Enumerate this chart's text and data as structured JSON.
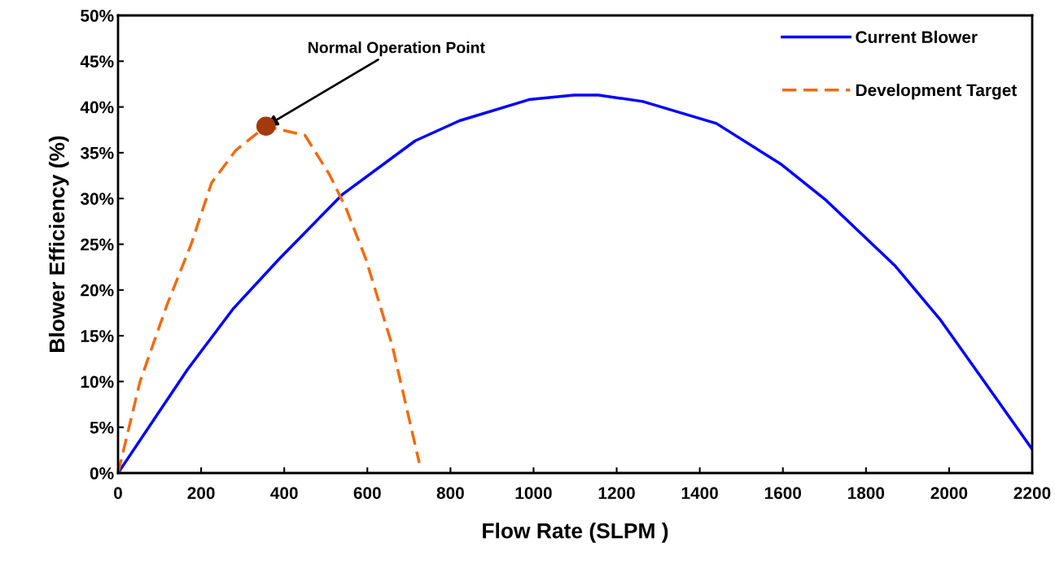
{
  "chart_data": {
    "type": "line",
    "xlabel": "Flow Rate (SLPM )",
    "ylabel": "Blower Efficiency (%)",
    "series": [
      {
        "name": "Current Blower",
        "color": "#0000ff",
        "line_style": "solid",
        "x": [
          0,
          167,
          278,
          388,
          539,
          715,
          822,
          989,
          1097,
          1156,
          1263,
          1440,
          1597,
          1704,
          1871,
          1978,
          2086,
          2200
        ],
        "values": [
          0,
          11.3,
          18,
          23.4,
          30.4,
          36.3,
          38.5,
          40.8,
          41.3,
          41.3,
          40.6,
          38.2,
          33.7,
          29.8,
          22.6,
          16.8,
          9.9,
          2.6
        ]
      },
      {
        "name": "Development Target",
        "color": "#f26a10",
        "line_style": "dashed",
        "x": [
          0,
          53,
          118,
          176,
          225,
          284,
          356,
          450,
          509,
          548,
          597,
          660,
          725
        ],
        "values": [
          0,
          10,
          18.4,
          25,
          31.7,
          35.3,
          37.9,
          36.9,
          32.6,
          29,
          23.3,
          13.9,
          1.1
        ]
      },
      {
        "type": "scatter",
        "color": "#a33a0c",
        "marker": "circle",
        "x": [
          356
        ],
        "values": [
          37.9
        ]
      }
    ],
    "annotations": [
      {
        "text": "Normal Operation Point",
        "x": 356,
        "y": 37.9
      }
    ],
    "xlim": [
      0,
      2200
    ],
    "xticks": [
      0,
      200,
      400,
      600,
      800,
      1000,
      1200,
      1400,
      1600,
      1800,
      2000,
      2200
    ],
    "ylim": [
      0,
      50
    ],
    "yticks": [
      {
        "value": 0,
        "label": "0%"
      },
      {
        "value": 5,
        "label": "5%"
      },
      {
        "value": 10,
        "label": "10%"
      },
      {
        "value": 15,
        "label": "15%"
      },
      {
        "value": 20,
        "label": "20%"
      },
      {
        "value": 25,
        "label": "25%"
      },
      {
        "value": 30,
        "label": "30%"
      },
      {
        "value": 35,
        "label": "35%"
      },
      {
        "value": 40,
        "label": "40%"
      },
      {
        "value": 45,
        "label": "45%"
      },
      {
        "value": 50,
        "label": "50%"
      }
    ],
    "grid": false,
    "legend": "top right"
  }
}
